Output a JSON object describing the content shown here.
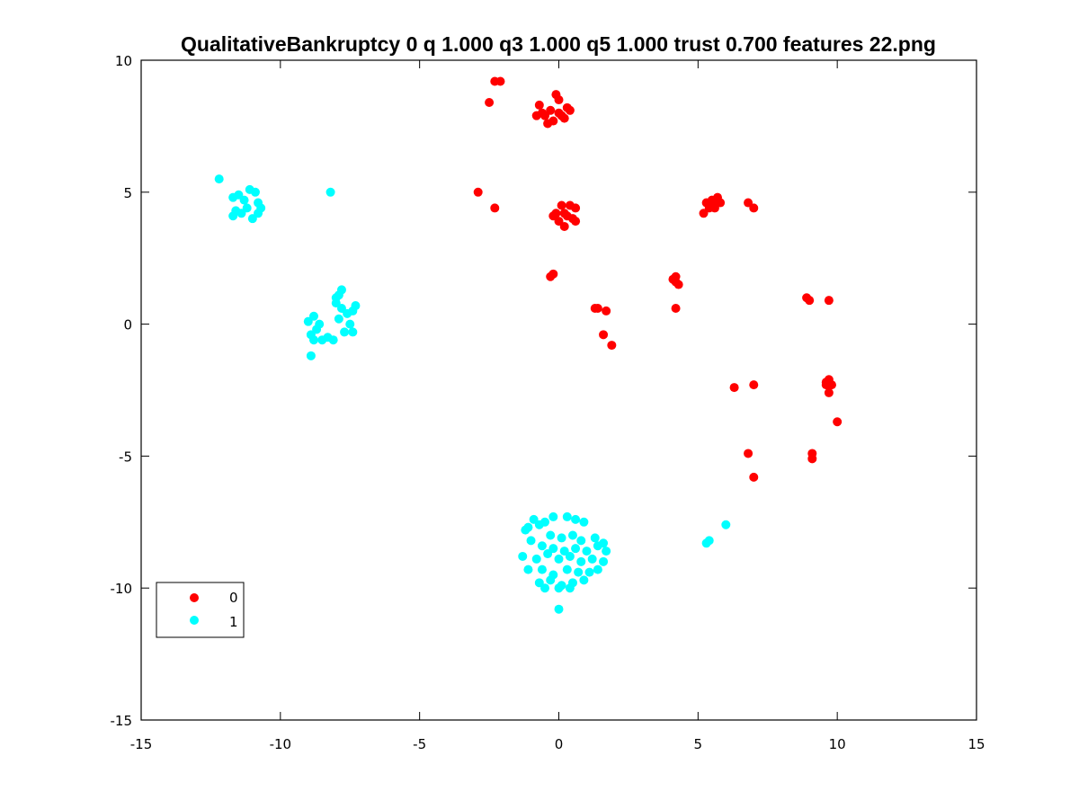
{
  "chart_data": {
    "type": "scatter",
    "title": "QualitativeBankruptcy 0 q 1.000 q3 1.000 q5 1.000 trust 0.700 features 22.png",
    "xlabel": "",
    "ylabel": "",
    "xlim": [
      -15,
      15
    ],
    "ylim": [
      -15,
      10
    ],
    "xticks": [
      -15,
      -10,
      -5,
      0,
      5,
      10,
      15
    ],
    "yticks": [
      -15,
      -10,
      -5,
      0,
      5,
      10
    ],
    "grid": false,
    "legend_position": "bottom-left",
    "series": [
      {
        "name": "0",
        "color": "#ff0000",
        "points": [
          [
            -2.3,
            9.2
          ],
          [
            -2.1,
            9.2
          ],
          [
            -2.5,
            8.4
          ],
          [
            -0.3,
            8.1
          ],
          [
            -0.1,
            8.7
          ],
          [
            0.0,
            8.5
          ],
          [
            0.3,
            8.2
          ],
          [
            0.4,
            8.1
          ],
          [
            -0.5,
            7.9
          ],
          [
            -0.7,
            8.3
          ],
          [
            -0.2,
            7.7
          ],
          [
            0.1,
            7.9
          ],
          [
            0.2,
            7.8
          ],
          [
            -0.8,
            7.9
          ],
          [
            -0.4,
            7.6
          ],
          [
            0.0,
            8.0
          ],
          [
            -0.6,
            8.0
          ],
          [
            -2.9,
            5.0
          ],
          [
            -2.3,
            4.4
          ],
          [
            0.1,
            4.5
          ],
          [
            0.2,
            4.2
          ],
          [
            -0.2,
            4.1
          ],
          [
            0.4,
            4.5
          ],
          [
            0.6,
            4.4
          ],
          [
            0.5,
            4.0
          ],
          [
            0.0,
            3.9
          ],
          [
            0.3,
            4.1
          ],
          [
            0.2,
            3.7
          ],
          [
            0.6,
            3.9
          ],
          [
            -0.1,
            4.2
          ],
          [
            -0.3,
            1.8
          ],
          [
            -0.2,
            1.9
          ],
          [
            1.3,
            0.6
          ],
          [
            1.4,
            0.6
          ],
          [
            1.7,
            0.5
          ],
          [
            1.6,
            -0.4
          ],
          [
            1.9,
            -0.8
          ],
          [
            4.1,
            1.7
          ],
          [
            4.2,
            1.6
          ],
          [
            4.3,
            1.5
          ],
          [
            4.2,
            1.8
          ],
          [
            4.2,
            0.6
          ],
          [
            5.2,
            4.2
          ],
          [
            5.3,
            4.6
          ],
          [
            5.4,
            4.4
          ],
          [
            5.5,
            4.7
          ],
          [
            5.6,
            4.5
          ],
          [
            5.7,
            4.8
          ],
          [
            5.8,
            4.6
          ],
          [
            5.6,
            4.4
          ],
          [
            6.8,
            4.6
          ],
          [
            7.0,
            4.4
          ],
          [
            8.9,
            1.0
          ],
          [
            9.0,
            0.9
          ],
          [
            9.7,
            0.9
          ],
          [
            6.3,
            -2.4
          ],
          [
            7.0,
            -2.3
          ],
          [
            9.6,
            -2.2
          ],
          [
            9.7,
            -2.1
          ],
          [
            9.8,
            -2.3
          ],
          [
            9.7,
            -2.6
          ],
          [
            9.6,
            -2.3
          ],
          [
            10.0,
            -3.7
          ],
          [
            6.8,
            -4.9
          ],
          [
            7.0,
            -5.8
          ],
          [
            9.1,
            -4.9
          ],
          [
            9.1,
            -5.1
          ]
        ]
      },
      {
        "name": "1",
        "color": "#00ffff",
        "points": [
          [
            -12.2,
            5.5
          ],
          [
            -11.7,
            4.8
          ],
          [
            -11.5,
            4.9
          ],
          [
            -11.3,
            4.7
          ],
          [
            -11.1,
            5.1
          ],
          [
            -10.9,
            5.0
          ],
          [
            -10.8,
            4.6
          ],
          [
            -10.7,
            4.4
          ],
          [
            -11.6,
            4.3
          ],
          [
            -11.4,
            4.2
          ],
          [
            -11.2,
            4.4
          ],
          [
            -11.0,
            4.0
          ],
          [
            -11.7,
            4.1
          ],
          [
            -10.8,
            4.2
          ],
          [
            -8.2,
            5.0
          ],
          [
            -9.0,
            0.1
          ],
          [
            -8.8,
            0.3
          ],
          [
            -8.7,
            -0.2
          ],
          [
            -8.9,
            -0.4
          ],
          [
            -8.6,
            0.0
          ],
          [
            -8.5,
            -0.6
          ],
          [
            -8.8,
            -0.6
          ],
          [
            -8.3,
            -0.5
          ],
          [
            -8.1,
            -0.6
          ],
          [
            -7.9,
            0.2
          ],
          [
            -7.8,
            0.6
          ],
          [
            -7.6,
            0.4
          ],
          [
            -7.5,
            0.0
          ],
          [
            -7.7,
            -0.3
          ],
          [
            -7.4,
            -0.3
          ],
          [
            -8.0,
            0.8
          ],
          [
            -7.9,
            1.1
          ],
          [
            -7.8,
            1.3
          ],
          [
            -7.4,
            0.5
          ],
          [
            -7.3,
            0.7
          ],
          [
            -8.0,
            1.0
          ],
          [
            -8.9,
            -1.2
          ],
          [
            -0.9,
            -7.4
          ],
          [
            -0.5,
            -7.5
          ],
          [
            -0.2,
            -7.3
          ],
          [
            0.3,
            -7.3
          ],
          [
            0.6,
            -7.4
          ],
          [
            0.9,
            -7.5
          ],
          [
            -1.1,
            -7.7
          ],
          [
            -1.2,
            -7.8
          ],
          [
            -0.7,
            -7.6
          ],
          [
            -0.3,
            -8.0
          ],
          [
            0.1,
            -8.1
          ],
          [
            0.5,
            -8.0
          ],
          [
            0.8,
            -8.2
          ],
          [
            1.3,
            -8.1
          ],
          [
            1.6,
            -8.3
          ],
          [
            -1.0,
            -8.2
          ],
          [
            -0.6,
            -8.4
          ],
          [
            -0.2,
            -8.5
          ],
          [
            0.2,
            -8.6
          ],
          [
            0.6,
            -8.5
          ],
          [
            1.0,
            -8.6
          ],
          [
            1.4,
            -8.4
          ],
          [
            1.7,
            -8.6
          ],
          [
            -1.3,
            -8.8
          ],
          [
            -0.8,
            -8.9
          ],
          [
            -0.4,
            -8.7
          ],
          [
            0.0,
            -8.9
          ],
          [
            0.4,
            -8.8
          ],
          [
            0.8,
            -9.0
          ],
          [
            1.2,
            -8.9
          ],
          [
            1.6,
            -9.0
          ],
          [
            -1.1,
            -9.3
          ],
          [
            -0.6,
            -9.3
          ],
          [
            -0.2,
            -9.5
          ],
          [
            0.3,
            -9.3
          ],
          [
            0.7,
            -9.4
          ],
          [
            1.1,
            -9.4
          ],
          [
            1.4,
            -9.3
          ],
          [
            -0.7,
            -9.8
          ],
          [
            -0.3,
            -9.7
          ],
          [
            0.1,
            -9.9
          ],
          [
            0.5,
            -9.8
          ],
          [
            0.9,
            -9.7
          ],
          [
            0.0,
            -10.0
          ],
          [
            0.4,
            -10.0
          ],
          [
            -0.5,
            -10.0
          ],
          [
            0.0,
            -10.8
          ],
          [
            6.0,
            -7.6
          ],
          [
            5.4,
            -8.2
          ],
          [
            5.3,
            -8.3
          ]
        ]
      }
    ]
  }
}
